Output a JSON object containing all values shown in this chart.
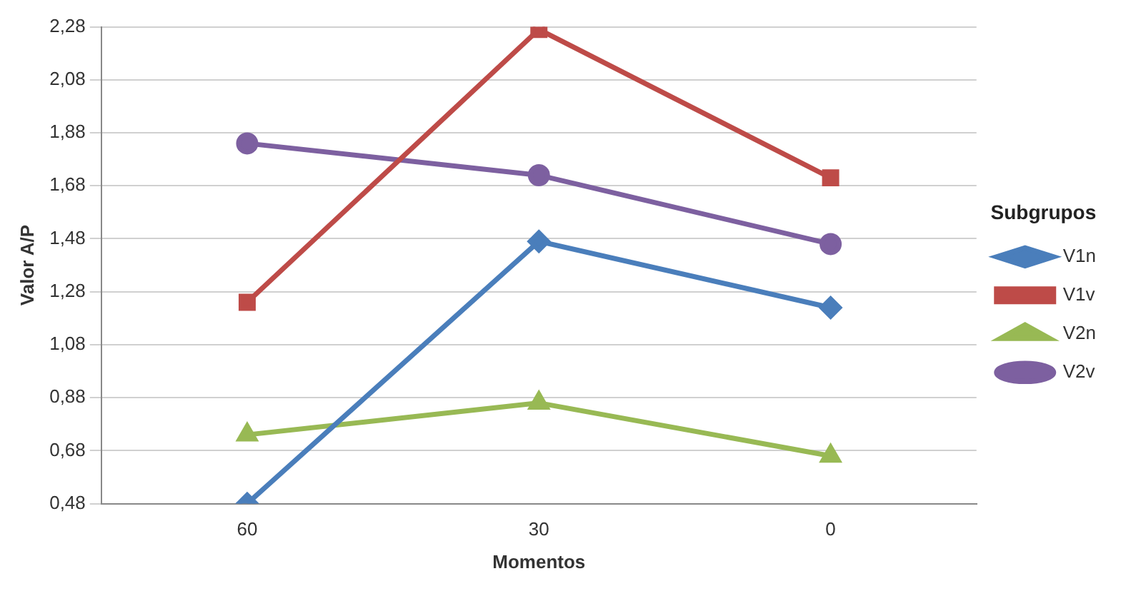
{
  "chart_data": {
    "type": "line",
    "xlabel": "Momentos",
    "ylabel": "Valor A/P",
    "legend_title": "Subgrupos",
    "legend": "right",
    "grid": "y",
    "categories": [
      "60",
      "30",
      "0"
    ],
    "ylim": [
      0.48,
      2.28
    ],
    "yticks": [
      {
        "value": 0.48,
        "label": "0,48"
      },
      {
        "value": 0.68,
        "label": "0,68"
      },
      {
        "value": 0.88,
        "label": "0,88"
      },
      {
        "value": 1.08,
        "label": "1,08"
      },
      {
        "value": 1.28,
        "label": "1,28"
      },
      {
        "value": 1.48,
        "label": "1,48"
      },
      {
        "value": 1.68,
        "label": "1,68"
      },
      {
        "value": 1.88,
        "label": "1,88"
      },
      {
        "value": 2.08,
        "label": "2,08"
      },
      {
        "value": 2.28,
        "label": "2,28"
      }
    ],
    "series": [
      {
        "name": "V1n",
        "color": "#4a7ebb",
        "marker": "diamond",
        "values": [
          0.48,
          1.47,
          1.22
        ]
      },
      {
        "name": "V1v",
        "color": "#be4b48",
        "marker": "square",
        "values": [
          1.24,
          2.27,
          1.71
        ]
      },
      {
        "name": "V2n",
        "color": "#98b954",
        "marker": "triangle",
        "values": [
          0.74,
          0.86,
          0.66
        ]
      },
      {
        "name": "V2v",
        "color": "#7d60a0",
        "marker": "circle",
        "values": [
          1.84,
          1.72,
          1.46
        ]
      }
    ]
  }
}
